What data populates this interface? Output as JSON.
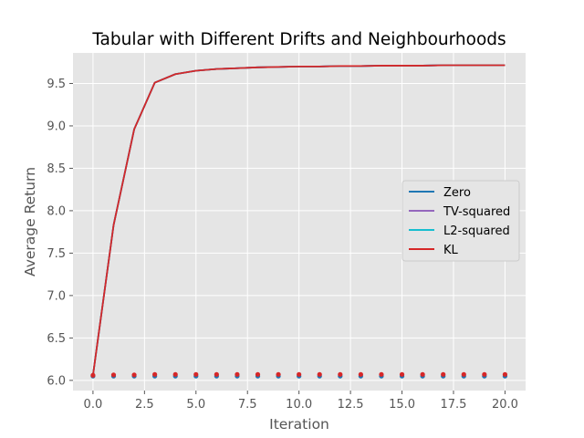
{
  "chart_data": {
    "type": "line",
    "title": "Tabular with Different Drifts and Neighbourhoods",
    "xlabel": "Iteration",
    "ylabel": "Average Return",
    "xlim": [
      -0.97,
      21.0
    ],
    "ylim": [
      5.88,
      9.86
    ],
    "xticks": [
      0,
      2.5,
      5,
      7.5,
      10,
      12.5,
      15,
      17.5,
      20
    ],
    "xtick_labels": [
      "0.0",
      "2.5",
      "5.0",
      "7.5",
      "10.0",
      "12.5",
      "15.0",
      "17.5",
      "20.0"
    ],
    "yticks": [
      6.0,
      6.5,
      7.0,
      7.5,
      8.0,
      8.5,
      9.0,
      9.5
    ],
    "ytick_labels": [
      "6.0",
      "6.5",
      "7.0",
      "7.5",
      "8.0",
      "8.5",
      "9.0",
      "9.5"
    ],
    "grid": true,
    "legend_position": "center-right",
    "x": [
      0,
      1,
      2,
      3,
      4,
      5,
      6,
      7,
      8,
      9,
      10,
      11,
      12,
      13,
      14,
      15,
      16,
      17,
      18,
      19,
      20
    ],
    "series": [
      {
        "name": "Zero",
        "color": "#1f77b4",
        "values": [
          6.06,
          7.83,
          8.96,
          9.51,
          9.61,
          9.65,
          9.67,
          9.68,
          9.69,
          9.695,
          9.7,
          9.7,
          9.705,
          9.705,
          9.71,
          9.71,
          9.71,
          9.715,
          9.715,
          9.715,
          9.715
        ]
      },
      {
        "name": "TV-squared",
        "color": "#9467bd",
        "values": [
          6.06,
          7.83,
          8.96,
          9.51,
          9.61,
          9.65,
          9.67,
          9.68,
          9.69,
          9.695,
          9.7,
          9.7,
          9.705,
          9.705,
          9.71,
          9.71,
          9.71,
          9.715,
          9.715,
          9.715,
          9.715
        ]
      },
      {
        "name": "L2-squared",
        "color": "#17becf",
        "values": [
          6.06,
          7.83,
          8.96,
          9.51,
          9.61,
          9.65,
          9.67,
          9.68,
          9.69,
          9.695,
          9.7,
          9.7,
          9.705,
          9.705,
          9.71,
          9.71,
          9.71,
          9.715,
          9.715,
          9.715,
          9.715
        ]
      },
      {
        "name": "KL",
        "color": "#d62728",
        "values": [
          6.06,
          7.83,
          8.96,
          9.51,
          9.61,
          9.65,
          9.67,
          9.68,
          9.69,
          9.695,
          9.7,
          9.7,
          9.705,
          9.705,
          9.71,
          9.71,
          9.71,
          9.715,
          9.715,
          9.715,
          9.715
        ]
      }
    ],
    "scatter_series": [
      {
        "color": "#1f77b4",
        "values": [
          6.05,
          6.05,
          6.05,
          6.05,
          6.05,
          6.05,
          6.05,
          6.05,
          6.05,
          6.05,
          6.05,
          6.05,
          6.05,
          6.05,
          6.05,
          6.05,
          6.05,
          6.05,
          6.05,
          6.05,
          6.05
        ]
      },
      {
        "color": "#d62728",
        "values": [
          6.06,
          6.065,
          6.065,
          6.07,
          6.07,
          6.07,
          6.07,
          6.07,
          6.07,
          6.07,
          6.07,
          6.07,
          6.07,
          6.07,
          6.07,
          6.07,
          6.07,
          6.07,
          6.07,
          6.07,
          6.07
        ]
      }
    ],
    "colors": {
      "plot_background": "#e5e5e5",
      "grid": "#ffffff",
      "tick_text": "#555555"
    }
  }
}
